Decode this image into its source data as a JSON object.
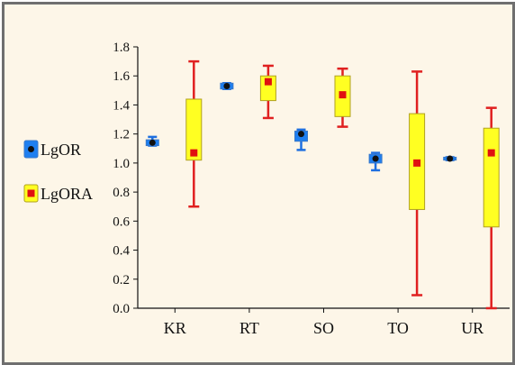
{
  "chart_data": {
    "type": "box",
    "categories": [
      "KR",
      "RT",
      "SO",
      "TO",
      "UR"
    ],
    "ylim": [
      0.0,
      1.8
    ],
    "yticks": [
      "0.0",
      "0.2",
      "0.4",
      "0.6",
      "0.8",
      "1.0",
      "1.2",
      "1.4",
      "1.6",
      "1.8"
    ],
    "legend_position": "left",
    "series": [
      {
        "name": "LgOR",
        "box_color": "#1e7ff0",
        "whisker_color": "#1e6fe0",
        "marker_color": "#111111",
        "marker_shape": "circle",
        "boxes": [
          {
            "category": "KR",
            "low": 1.12,
            "q1": 1.12,
            "median": 1.14,
            "q3": 1.16,
            "high": 1.18
          },
          {
            "category": "RT",
            "low": 1.51,
            "q1": 1.51,
            "median": 1.53,
            "q3": 1.55,
            "high": 1.55
          },
          {
            "category": "SO",
            "low": 1.09,
            "q1": 1.15,
            "median": 1.2,
            "q3": 1.22,
            "high": 1.23
          },
          {
            "category": "TO",
            "low": 0.95,
            "q1": 1.0,
            "median": 1.03,
            "q3": 1.06,
            "high": 1.07
          },
          {
            "category": "UR",
            "low": 1.02,
            "q1": 1.02,
            "median": 1.03,
            "q3": 1.04,
            "high": 1.04
          }
        ]
      },
      {
        "name": "LgORA",
        "box_color": "#ffff22",
        "whisker_color": "#e02020",
        "marker_color": "#e01010",
        "marker_shape": "square",
        "boxes": [
          {
            "category": "KR",
            "low": 0.7,
            "q1": 1.02,
            "median": 1.07,
            "q3": 1.44,
            "high": 1.7
          },
          {
            "category": "RT",
            "low": 1.31,
            "q1": 1.43,
            "median": 1.56,
            "q3": 1.6,
            "high": 1.67
          },
          {
            "category": "SO",
            "low": 1.25,
            "q1": 1.32,
            "median": 1.47,
            "q3": 1.6,
            "high": 1.65
          },
          {
            "category": "TO",
            "low": 0.09,
            "q1": 0.68,
            "median": 1.0,
            "q3": 1.34,
            "high": 1.63
          },
          {
            "category": "UR",
            "low": 0.0,
            "q1": 0.56,
            "median": 1.07,
            "q3": 1.24,
            "high": 1.38
          }
        ]
      }
    ]
  }
}
